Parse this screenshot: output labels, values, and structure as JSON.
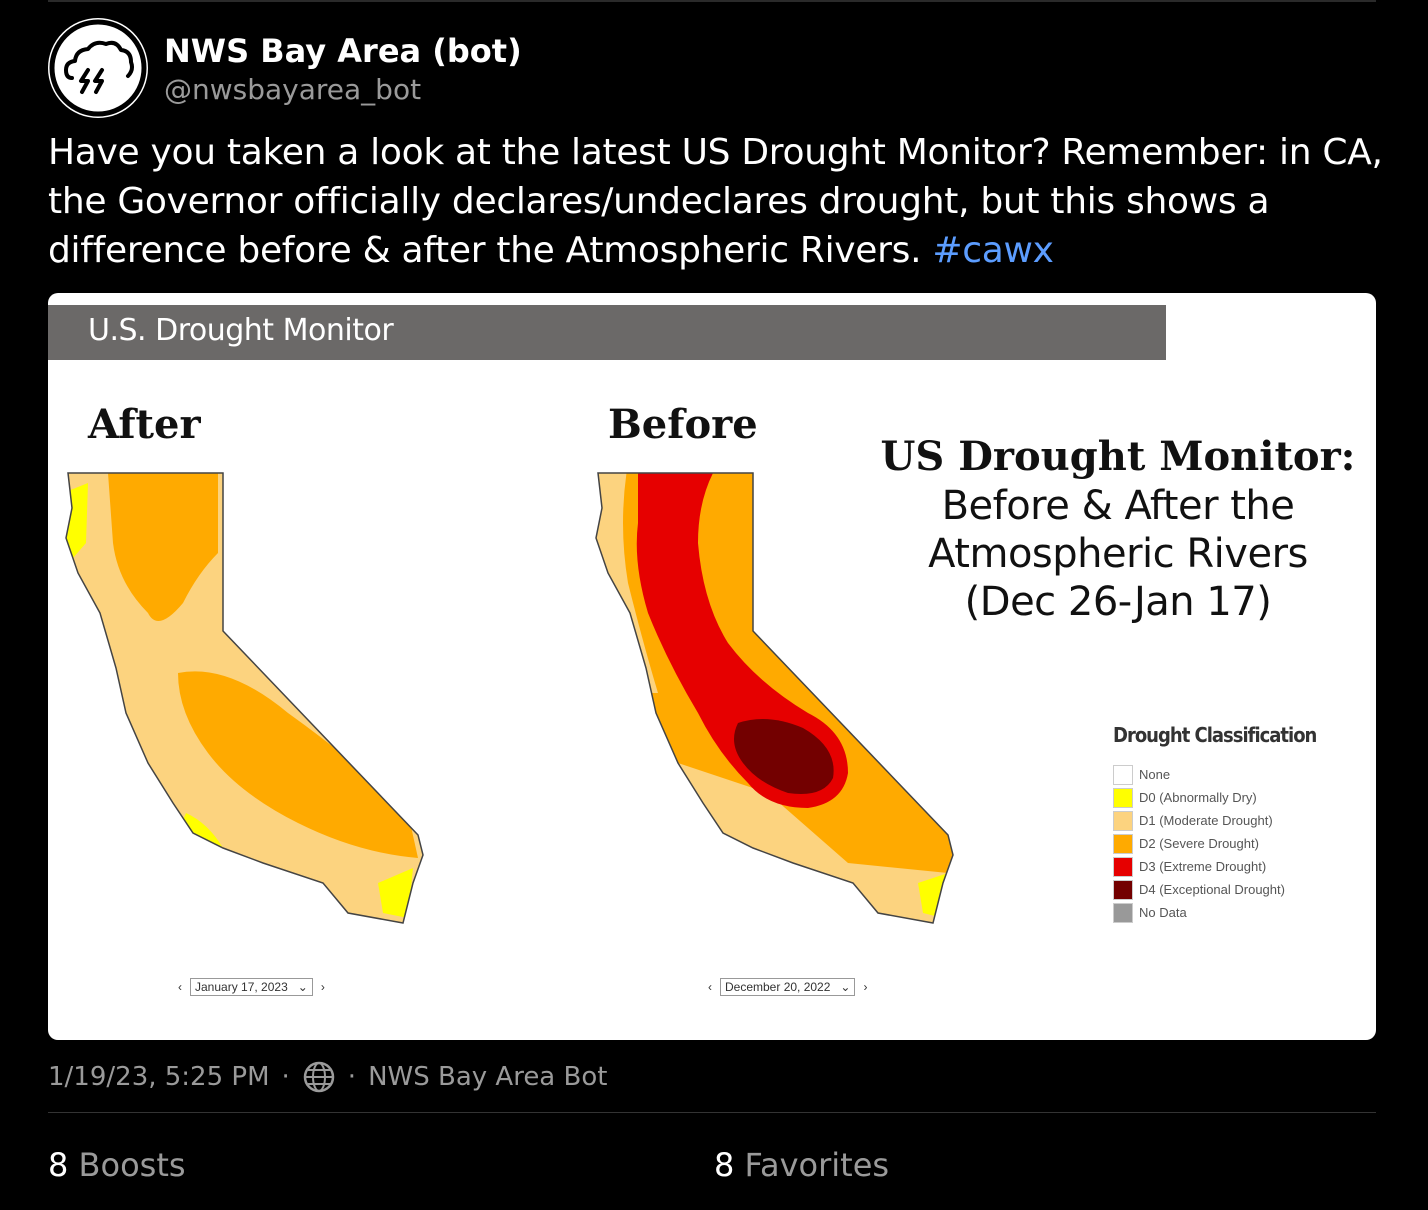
{
  "post": {
    "display_name": "NWS Bay Area (bot)",
    "handle": "@nwsbayarea_bot",
    "text_lines": [
      "Have you taken a look at the latest US Drought Monitor? Remember: in CA,",
      "the Governor officially declares/undeclares drought, but this shows a",
      "difference before & after the Atmospheric Rivers."
    ],
    "hashtag": "#cawx",
    "timestamp": "1/19/23, 5:25 PM",
    "separator": "·",
    "app_name": "NWS Bay Area Bot",
    "boosts_count": "8",
    "boosts_label": "Boosts",
    "favorites_count": "8",
    "favorites_label": "Favorites",
    "accent_color": "#5c9dff"
  },
  "media": {
    "header": "U.S. Drought Monitor",
    "after_label": "After",
    "before_label": "Before",
    "title_line1": "US Drought Monitor:",
    "title_line2": "Before & After the",
    "title_line3": "Atmospheric Rivers",
    "title_line4": "(Dec 26-Jan 17)",
    "after_date": "January 17, 2023",
    "before_date": "December 20, 2022",
    "legend": {
      "title": "Drought Classification",
      "items": [
        {
          "label": "None",
          "color": "#ffffff"
        },
        {
          "label": "D0 (Abnormally Dry)",
          "color": "#ffff00"
        },
        {
          "label": "D1 (Moderate Drought)",
          "color": "#fcd37f"
        },
        {
          "label": "D2 (Severe Drought)",
          "color": "#ffaa00"
        },
        {
          "label": "D3 (Extreme Drought)",
          "color": "#e60000"
        },
        {
          "label": "D4 (Exceptional Drought)",
          "color": "#730000"
        },
        {
          "label": "No Data",
          "color": "#999999"
        }
      ]
    }
  }
}
